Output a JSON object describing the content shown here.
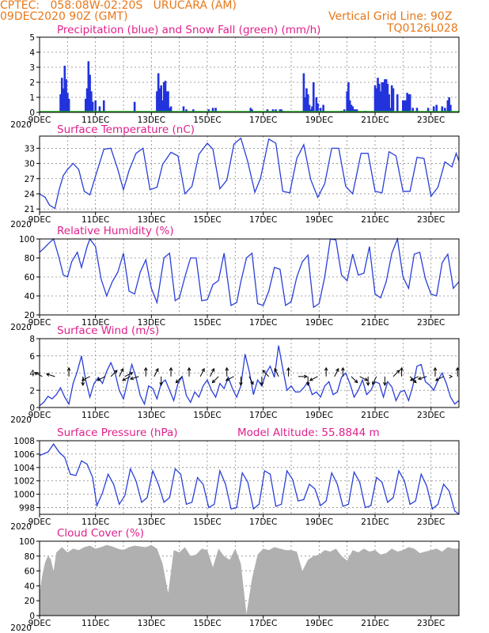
{
  "header": {
    "left_line1": "CPTEC:   058:08W-02:20S   URUCARA (AM)",
    "left_line2": "09DEC2020 90Z (GMT)",
    "right_line1": "Vertical Grid Line: 90Z",
    "right_line2": "TQ0126L028"
  },
  "colors": {
    "line": "#2a3fd8",
    "precip": "#2233dd",
    "snow": "#22aa22",
    "cloud": "#b0b0b0",
    "title": "#e0208c",
    "header": "#e8781a"
  },
  "x_axis": {
    "ticks": [
      "9DEC",
      "11DEC",
      "13DEC",
      "15DEC",
      "17DEC",
      "19DEC",
      "21DEC",
      "23DEC"
    ],
    "year_label": "2020"
  },
  "chart_data": [
    {
      "type": "bar",
      "title": "Precipitation (blue) and Snow Fall (green) (mm/h)",
      "ylim": [
        0,
        5
      ],
      "yticks": [
        "0",
        "1",
        "2",
        "3",
        "4",
        "5"
      ],
      "x_days": [
        0.75,
        0.8,
        0.85,
        0.9,
        0.95,
        1.0,
        1.05,
        1.65,
        1.7,
        1.75,
        1.8,
        1.85,
        1.9,
        2.0,
        2.15,
        2.3,
        3.4,
        4.2,
        4.25,
        4.3,
        4.35,
        4.4,
        4.45,
        4.5,
        4.55,
        4.6,
        4.65,
        4.7,
        5.15,
        5.25,
        5.5,
        6.05,
        6.2,
        6.3,
        7.55,
        7.6,
        8.15,
        8.35,
        8.45,
        8.6,
        8.65,
        8.7,
        9.45,
        9.5,
        9.55,
        9.6,
        9.65,
        9.7,
        9.75,
        9.8,
        9.9,
        9.95,
        10.05,
        10.15,
        10.8,
        10.9,
        11.0,
        11.05,
        11.1,
        11.15,
        11.2,
        11.25,
        11.3,
        11.35,
        11.65,
        12.0,
        12.05,
        12.1,
        12.15,
        12.2,
        12.25,
        12.3,
        12.35,
        12.4,
        12.45,
        12.5,
        12.55,
        12.6,
        12.65,
        12.8,
        13.0,
        13.05,
        13.1,
        13.15,
        13.2,
        13.25,
        13.35,
        13.5,
        13.9,
        14.1,
        14.2,
        14.4,
        14.5,
        14.6,
        14.65,
        14.7
      ],
      "values": [
        1.2,
        2.3,
        1.6,
        3.1,
        2.2,
        1.3,
        0.9,
        0.9,
        1.6,
        3.4,
        2.5,
        1.4,
        0.7,
        0.8,
        0.4,
        0.8,
        0.7,
        1.4,
        2.6,
        1.6,
        1.8,
        0.8,
        2.0,
        2.1,
        1.4,
        1.4,
        0.3,
        0.4,
        0.4,
        0.2,
        0.2,
        0.2,
        0.3,
        0.3,
        0.3,
        0.2,
        0.2,
        0.2,
        0.2,
        0.2,
        0.2,
        0.1,
        2.6,
        1.0,
        1.6,
        1.2,
        0.5,
        0.2,
        0.4,
        2.0,
        1.0,
        0.6,
        0.3,
        0.5,
        0.1,
        0.2,
        1.4,
        2.0,
        0.8,
        0.5,
        0.4,
        0.2,
        0.2,
        0.2,
        0.1,
        1.8,
        1.6,
        2.3,
        1.9,
        1.4,
        2.0,
        2.0,
        2.2,
        2.2,
        1.9,
        1.2,
        0.3,
        1.8,
        1.6,
        1.2,
        0.8,
        0.8,
        0.8,
        1.3,
        1.2,
        1.2,
        0.3,
        0.3,
        0.3,
        0.4,
        0.5,
        0.4,
        0.3,
        0.8,
        1.0,
        0.5
      ]
    },
    {
      "type": "line",
      "title": "Surface Temperature (nC)",
      "ylim": [
        20.4,
        35.4
      ],
      "yticks": [
        "21",
        "24",
        "27",
        "30",
        "33"
      ],
      "x_days": [
        0,
        0.2,
        0.35,
        0.55,
        0.7,
        0.85,
        1.0,
        1.2,
        1.4,
        1.6,
        1.8,
        2.0,
        2.3,
        2.55,
        2.8,
        3.0,
        3.2,
        3.45,
        3.7,
        3.95,
        4.2,
        4.4,
        4.7,
        4.95,
        5.2,
        5.45,
        5.7,
        6.0,
        6.2,
        6.45,
        6.7,
        6.95,
        7.2,
        7.45,
        7.7,
        7.9,
        8.2,
        8.45,
        8.7,
        8.95,
        9.2,
        9.45,
        9.7,
        9.95,
        10.2,
        10.45,
        10.7,
        10.95,
        11.2,
        11.5,
        11.75,
        12.0,
        12.25,
        12.5,
        12.75,
        13.0,
        13.25,
        13.5,
        13.75,
        14.0,
        14.25,
        14.5,
        14.75,
        14.9,
        15.0
      ],
      "values": [
        24,
        23.3,
        21.8,
        21.1,
        24.8,
        27.6,
        28.8,
        30.0,
        28.8,
        24.5,
        23.8,
        27.5,
        32.8,
        33.0,
        28.8,
        24.8,
        28.6,
        32.0,
        33.0,
        24.8,
        25.3,
        29.8,
        32.2,
        31.5,
        24.0,
        25.5,
        31.8,
        34.0,
        32.8,
        25.0,
        26.7,
        33.8,
        35.0,
        30.3,
        24.3,
        27.0,
        34.8,
        34.0,
        24.5,
        24.2,
        31.0,
        33.7,
        26.8,
        23.3,
        26.0,
        33.0,
        33.0,
        25.5,
        24.0,
        32.0,
        32.0,
        24.5,
        24.2,
        32.3,
        31.5,
        24.5,
        24.5,
        31.2,
        31.0,
        23.5,
        25.3,
        30.3,
        29.3,
        32.0,
        30.5
      ]
    },
    {
      "type": "line",
      "title": "Relative Humidity (%)",
      "ylim": [
        20,
        100
      ],
      "yticks": [
        "20",
        "40",
        "60",
        "80",
        "100"
      ],
      "x_days": [
        0,
        0.15,
        0.35,
        0.5,
        0.7,
        0.85,
        1.0,
        1.15,
        1.35,
        1.5,
        1.7,
        1.8,
        2.0,
        2.2,
        2.4,
        2.6,
        2.8,
        3.0,
        3.2,
        3.4,
        3.6,
        3.8,
        4.0,
        4.2,
        4.45,
        4.65,
        4.85,
        5.0,
        5.2,
        5.4,
        5.6,
        5.8,
        6.0,
        6.2,
        6.4,
        6.6,
        6.85,
        7.05,
        7.2,
        7.4,
        7.6,
        7.8,
        8.0,
        8.2,
        8.4,
        8.6,
        8.8,
        9.0,
        9.2,
        9.4,
        9.6,
        9.8,
        10.0,
        10.2,
        10.4,
        10.6,
        10.8,
        11.0,
        11.2,
        11.4,
        11.6,
        11.8,
        12.0,
        12.2,
        12.4,
        12.6,
        12.8,
        13.0,
        13.2,
        13.4,
        13.6,
        13.8,
        14.0,
        14.2,
        14.4,
        14.6,
        14.8,
        15.0
      ],
      "values": [
        86,
        90,
        96,
        100,
        80,
        62,
        60,
        76,
        86,
        70,
        92,
        100,
        92,
        58,
        40,
        55,
        65,
        85,
        45,
        42,
        65,
        78,
        48,
        33,
        80,
        85,
        35,
        38,
        60,
        80,
        80,
        35,
        36,
        52,
        56,
        85,
        30,
        33,
        55,
        80,
        85,
        32,
        30,
        45,
        70,
        68,
        30,
        34,
        60,
        76,
        83,
        28,
        32,
        60,
        100,
        99,
        62,
        56,
        84,
        62,
        64,
        92,
        42,
        38,
        55,
        85,
        100,
        60,
        48,
        84,
        86,
        58,
        42,
        40,
        75,
        84,
        48,
        55
      ]
    },
    {
      "type": "line",
      "title": "Surface Wind (m/s)",
      "ylim": [
        0,
        8
      ],
      "yticks": [
        "0",
        "2",
        "4",
        "6",
        "8"
      ],
      "x_days": [
        0,
        0.15,
        0.3,
        0.45,
        0.6,
        0.75,
        0.9,
        1.05,
        1.2,
        1.35,
        1.5,
        1.65,
        1.8,
        1.95,
        2.1,
        2.25,
        2.4,
        2.55,
        2.7,
        2.85,
        3.0,
        3.15,
        3.3,
        3.45,
        3.6,
        3.75,
        3.9,
        4.05,
        4.2,
        4.35,
        4.5,
        4.65,
        4.8,
        4.95,
        5.1,
        5.25,
        5.4,
        5.55,
        5.7,
        5.85,
        6.0,
        6.15,
        6.3,
        6.45,
        6.6,
        6.75,
        6.9,
        7.05,
        7.2,
        7.35,
        7.5,
        7.65,
        7.8,
        7.95,
        8.1,
        8.25,
        8.4,
        8.55,
        8.7,
        8.85,
        9.0,
        9.15,
        9.3,
        9.45,
        9.6,
        9.75,
        9.9,
        10.05,
        10.2,
        10.35,
        10.5,
        10.65,
        10.8,
        10.95,
        11.1,
        11.25,
        11.4,
        11.55,
        11.7,
        11.85,
        12.0,
        12.15,
        12.3,
        12.45,
        12.6,
        12.75,
        12.9,
        13.05,
        13.2,
        13.35,
        13.5,
        13.65,
        13.8,
        13.95,
        14.1,
        14.25,
        14.4,
        14.55,
        14.7,
        14.85,
        15.0
      ],
      "values": [
        0.2,
        0.6,
        1.3,
        1.0,
        1.5,
        2.3,
        1.2,
        0.4,
        2.8,
        4.2,
        6.0,
        3.2,
        1.2,
        2.8,
        3.5,
        2.8,
        4.2,
        5.2,
        4.0,
        2.0,
        1.0,
        3.0,
        5.0,
        3.5,
        1.4,
        0.4,
        2.5,
        2.2,
        1.0,
        2.8,
        3.2,
        2.0,
        0.8,
        2.8,
        3.6,
        1.4,
        0.6,
        1.8,
        1.2,
        2.5,
        3.2,
        2.0,
        1.2,
        2.8,
        2.2,
        3.5,
        2.2,
        1.2,
        2.5,
        6.2,
        4.2,
        1.5,
        3.2,
        2.5,
        4.0,
        4.8,
        3.5,
        7.2,
        4.5,
        2.0,
        2.5,
        1.8,
        1.8,
        2.3,
        3.0,
        1.5,
        1.8,
        1.2,
        2.5,
        3.0,
        1.5,
        1.8,
        3.5,
        4.0,
        2.8,
        1.2,
        2.0,
        3.2,
        1.5,
        2.0,
        3.0,
        2.8,
        1.2,
        3.0,
        2.4,
        0.8,
        1.8,
        2.0,
        0.8,
        2.5,
        4.8,
        5.0,
        3.0,
        2.6,
        2.0,
        3.2,
        4.0,
        2.8,
        1.2,
        0.4,
        0.8
      ],
      "arrows_days": [
        0.1,
        0.55,
        1.05,
        1.55,
        1.8,
        2.35,
        2.55,
        2.85,
        3.05,
        3.25,
        3.55,
        3.8,
        4.1,
        4.35,
        4.7,
        5.1,
        5.35,
        5.75,
        6.1,
        6.4,
        6.7,
        6.95,
        7.2,
        7.5,
        7.95,
        8.2,
        8.55,
        8.9,
        9.25,
        9.6,
        9.95,
        10.25,
        10.55,
        10.85,
        11.15,
        11.45,
        11.75,
        12.05,
        12.35,
        12.65,
        12.95,
        13.25,
        13.55,
        13.85,
        14.15,
        14.45,
        14.75,
        14.95
      ],
      "arrows_dx": [
        -1,
        -1,
        0,
        0,
        -1,
        -1,
        0.5,
        0.5,
        1,
        -1,
        -1,
        0,
        0.5,
        0,
        0,
        -0.5,
        0,
        0.5,
        0.5,
        -0.5,
        0,
        -1,
        0,
        0.5,
        0,
        -0.5,
        -0.5,
        0,
        1,
        0,
        -1,
        0,
        0.5,
        0,
        0.5,
        1,
        0,
        -0.5,
        0,
        0.5,
        0,
        0.5,
        -1,
        -1,
        0,
        -1,
        0,
        0
      ],
      "arrows_dy": [
        0.5,
        0.3,
        1,
        -1,
        -0.5,
        -0.5,
        0.5,
        1,
        0.5,
        -0.5,
        -0.3,
        1,
        1,
        -0.5,
        1,
        -0.5,
        1,
        1,
        1,
        -0.5,
        1,
        -0.5,
        -1,
        -1,
        -0.5,
        0.5,
        1,
        1,
        0,
        -1,
        -0.5,
        1,
        1,
        1,
        -0.5,
        -0.5,
        -1,
        -1,
        -1,
        0.5,
        1,
        -0.5,
        -0.5,
        -0.3,
        1,
        -0.5,
        0,
        1
      ]
    },
    {
      "type": "line",
      "title": "Surface Pressure (hPa)",
      "annotation": "Model Altitude: 55.8844 m",
      "ylim": [
        997,
        1008
      ],
      "yticks": [
        "998",
        "1000",
        "1002",
        "1004",
        "1006",
        "1008"
      ],
      "x_days": [
        0,
        0.3,
        0.5,
        0.7,
        0.9,
        1.1,
        1.3,
        1.5,
        1.7,
        1.9,
        2.05,
        2.25,
        2.45,
        2.65,
        2.85,
        3.05,
        3.25,
        3.45,
        3.65,
        3.85,
        4.05,
        4.25,
        4.45,
        4.65,
        4.85,
        5.05,
        5.25,
        5.45,
        5.65,
        5.85,
        6.05,
        6.25,
        6.45,
        6.65,
        6.85,
        7.05,
        7.25,
        7.45,
        7.65,
        7.85,
        8.05,
        8.25,
        8.45,
        8.65,
        8.85,
        9.05,
        9.25,
        9.45,
        9.65,
        9.85,
        10.05,
        10.25,
        10.45,
        10.65,
        10.85,
        11.05,
        11.25,
        11.45,
        11.65,
        11.85,
        12.05,
        12.25,
        12.45,
        12.65,
        12.85,
        13.05,
        13.25,
        13.45,
        13.65,
        13.85,
        14.05,
        14.25,
        14.45,
        14.65,
        14.85,
        15.0
      ],
      "values": [
        1005.8,
        1006.3,
        1007.5,
        1006.3,
        1005.5,
        1003.0,
        1002.8,
        1005.0,
        1004.5,
        1002.5,
        998.3,
        1000.2,
        1003.0,
        1001.5,
        998.5,
        999.8,
        1003.8,
        1002.0,
        998.8,
        999.5,
        1003.5,
        1001.5,
        998.8,
        999.5,
        1003.8,
        1003.0,
        998.5,
        998.8,
        1002.5,
        1001.5,
        998.0,
        998.5,
        1003.5,
        1001.5,
        997.8,
        998.0,
        1003.2,
        1001.8,
        997.8,
        998.5,
        1003.5,
        1003.0,
        998.2,
        998.5,
        1003.5,
        1002.2,
        999.0,
        999.2,
        1001.5,
        1000.8,
        998.3,
        999.0,
        1003.2,
        1001.5,
        998.2,
        998.5,
        1003.3,
        1001.8,
        998.0,
        998.3,
        1002.5,
        1001.8,
        998.8,
        999.5,
        1003.5,
        1002.0,
        998.5,
        999.0,
        1003.0,
        1001.2,
        997.8,
        998.5,
        1001.5,
        1000.5,
        997.5,
        997.0
      ]
    },
    {
      "type": "area",
      "title": "Cloud Cover (%)",
      "ylim": [
        0,
        100
      ],
      "yticks": [
        "0",
        "20",
        "40",
        "60",
        "80",
        "100"
      ],
      "x_days": [
        0,
        0.1,
        0.2,
        0.3,
        0.4,
        0.5,
        0.6,
        0.8,
        1.0,
        1.2,
        1.4,
        1.6,
        1.8,
        2.0,
        2.2,
        2.4,
        2.6,
        2.8,
        3.0,
        3.2,
        3.4,
        3.6,
        3.8,
        4.0,
        4.2,
        4.4,
        4.6,
        4.8,
        5.0,
        5.2,
        5.4,
        5.6,
        5.8,
        6.0,
        6.2,
        6.4,
        6.6,
        6.8,
        7.0,
        7.2,
        7.4,
        7.6,
        7.8,
        8.0,
        8.2,
        8.4,
        8.6,
        8.8,
        9.0,
        9.2,
        9.4,
        9.6,
        9.8,
        10.0,
        10.2,
        10.4,
        10.6,
        10.8,
        11.0,
        11.2,
        11.4,
        11.6,
        11.8,
        12.0,
        12.2,
        12.4,
        12.6,
        12.8,
        13.0,
        13.2,
        13.4,
        13.6,
        13.8,
        14.0,
        14.2,
        14.4,
        14.6,
        14.8,
        15.0
      ],
      "values": [
        30,
        55,
        72,
        80,
        76,
        60,
        85,
        92,
        85,
        90,
        88,
        92,
        94,
        90,
        92,
        95,
        93,
        90,
        88,
        92,
        94,
        93,
        92,
        95,
        90,
        70,
        30,
        88,
        85,
        92,
        80,
        82,
        90,
        88,
        65,
        90,
        80,
        75,
        90,
        70,
        2,
        50,
        82,
        90,
        88,
        92,
        90,
        88,
        88,
        86,
        60,
        75,
        80,
        82,
        88,
        86,
        90,
        80,
        74,
        88,
        85,
        90,
        86,
        88,
        82,
        84,
        90,
        86,
        88,
        92,
        90,
        84,
        86,
        88,
        90,
        86,
        92,
        90,
        90
      ]
    }
  ]
}
